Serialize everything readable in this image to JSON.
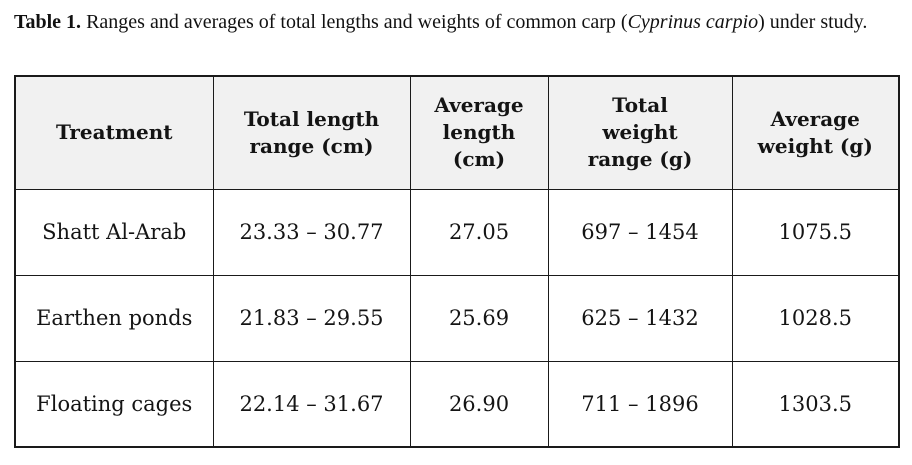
{
  "caption": {
    "label": "Table 1.",
    "body_prefix": " Ranges and averages of total lengths and weights of common carp (",
    "species": "Cyprinus carpio",
    "body_suffix": ") under study."
  },
  "table": {
    "columns": [
      "Treatment",
      "Total length\nrange (cm)",
      "Average\nlength\n(cm)",
      "Total\nweight\nrange (g)",
      "Average\nweight (g)"
    ],
    "rows": [
      [
        "Shatt Al-Arab",
        "23.33 – 30.77",
        "27.05",
        "697 – 1454",
        "1075.5"
      ],
      [
        "Earthen ponds",
        "21.83 – 29.55",
        "25.69",
        "625 – 1432",
        "1028.5"
      ],
      [
        "Floating cages",
        "22.14 – 31.67",
        "26.90",
        "711 – 1896",
        "1303.5"
      ]
    ]
  },
  "colors": {
    "header_bg": "#f1f1f1",
    "border": "#1a1a1a",
    "text": "#141414"
  }
}
